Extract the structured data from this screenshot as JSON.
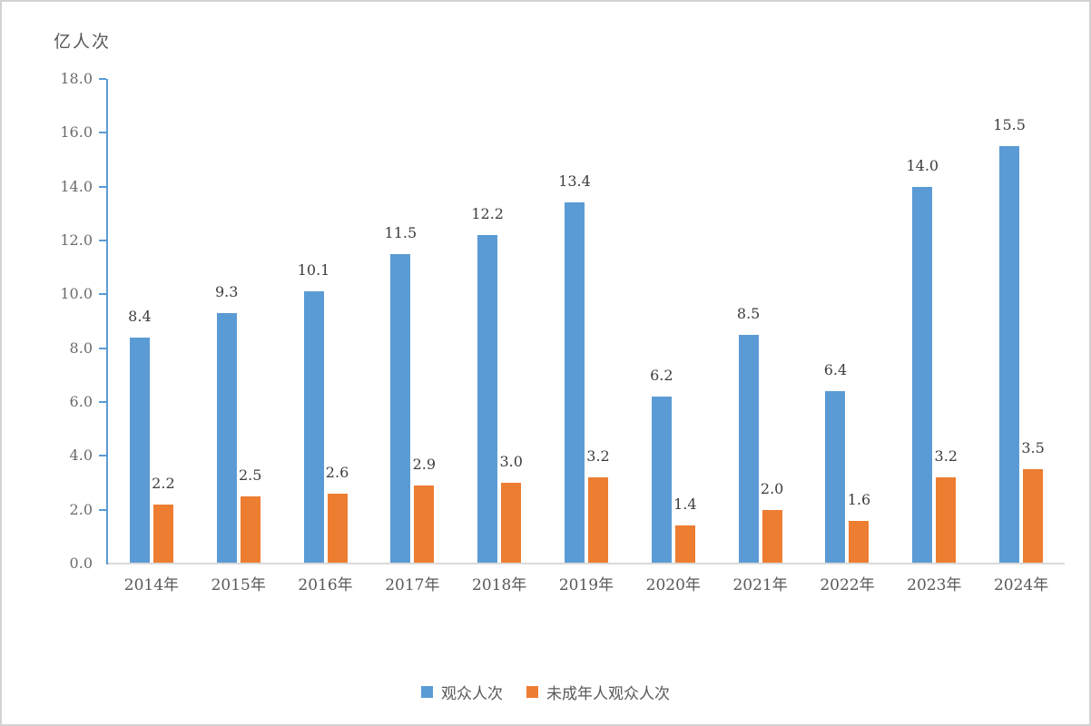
{
  "chart_data": {
    "type": "bar",
    "title": "",
    "ylabel": "亿人次",
    "xlabel": "",
    "categories": [
      "2014年",
      "2015年",
      "2016年",
      "2017年",
      "2018年",
      "2019年",
      "2020年",
      "2021年",
      "2022年",
      "2023年",
      "2024年"
    ],
    "series": [
      {
        "name": "观众人次",
        "color": "#5b9bd5",
        "values": [
          8.4,
          9.3,
          10.1,
          11.5,
          12.2,
          13.4,
          6.2,
          8.5,
          6.4,
          14.0,
          15.5
        ]
      },
      {
        "name": "未成年人观众人次",
        "color": "#ed7d31",
        "values": [
          2.2,
          2.5,
          2.6,
          2.9,
          3.0,
          3.2,
          1.4,
          2.0,
          1.6,
          3.2,
          3.5
        ]
      }
    ],
    "ylim": [
      0,
      18
    ],
    "ytick_step": 2,
    "ytick_labels": [
      "0.0",
      "2.0",
      "4.0",
      "6.0",
      "8.0",
      "10.0",
      "12.0",
      "14.0",
      "16.0",
      "18.0"
    ],
    "grid": false,
    "data_labels": true,
    "legend_position": "bottom"
  },
  "colors": {
    "series_blue": "#5b9bd5",
    "series_orange": "#ed7d31",
    "y_axis_line": "#5b9bd5",
    "x_axis_line": "#d9d9d9",
    "tick_label_text": "#6b6b6b",
    "data_label_text": "#3d3d3d",
    "frame_border": "#d3d3d3"
  }
}
